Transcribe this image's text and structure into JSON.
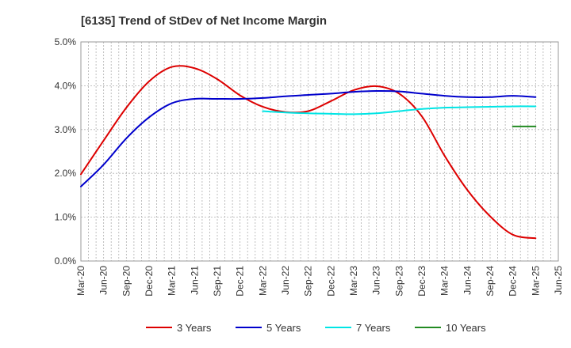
{
  "chart_data": {
    "type": "line",
    "title": "[6135]  Trend of StDev of Net Income Margin",
    "xlabel": "",
    "ylabel": "",
    "x_ticks": [
      "Mar-20",
      "Jun-20",
      "Sep-20",
      "Dec-20",
      "Mar-21",
      "Jun-21",
      "Sep-21",
      "Dec-21",
      "Mar-22",
      "Jun-22",
      "Sep-22",
      "Dec-22",
      "Mar-23",
      "Jun-23",
      "Sep-23",
      "Dec-23",
      "Mar-24",
      "Jun-24",
      "Sep-24",
      "Dec-24",
      "Mar-25",
      "Jun-25"
    ],
    "xlim": [
      "Mar-20",
      "Jun-25"
    ],
    "y_ticks": [
      "0.0%",
      "1.0%",
      "2.0%",
      "3.0%",
      "4.0%",
      "5.0%"
    ],
    "y_tick_values": [
      0,
      1,
      2,
      3,
      4,
      5
    ],
    "ylim": [
      0,
      5
    ],
    "y_unit": "%",
    "grid": true,
    "legend_position": "bottom",
    "series": [
      {
        "name": "3 Years",
        "color": "#dd0000",
        "x": [
          "Mar-20",
          "Jun-20",
          "Sep-20",
          "Dec-20",
          "Mar-21",
          "Jun-21",
          "Sep-21",
          "Dec-21",
          "Mar-22",
          "Jun-22",
          "Sep-22",
          "Dec-22",
          "Mar-23",
          "Jun-23",
          "Sep-23",
          "Dec-23",
          "Mar-24",
          "Jun-24",
          "Sep-24",
          "Dec-24",
          "Mar-25"
        ],
        "values": [
          1.98,
          2.75,
          3.5,
          4.1,
          4.43,
          4.4,
          4.15,
          3.78,
          3.52,
          3.4,
          3.42,
          3.65,
          3.9,
          3.99,
          3.82,
          3.3,
          2.4,
          1.62,
          1.02,
          0.6,
          0.52
        ]
      },
      {
        "name": "5 Years",
        "color": "#0000cc",
        "x": [
          "Mar-20",
          "Jun-20",
          "Sep-20",
          "Dec-20",
          "Mar-21",
          "Jun-21",
          "Sep-21",
          "Dec-21",
          "Mar-22",
          "Jun-22",
          "Sep-22",
          "Dec-22",
          "Mar-23",
          "Jun-23",
          "Sep-23",
          "Dec-23",
          "Mar-24",
          "Jun-24",
          "Sep-24",
          "Dec-24",
          "Mar-25"
        ],
        "values": [
          1.7,
          2.2,
          2.8,
          3.28,
          3.6,
          3.7,
          3.7,
          3.7,
          3.72,
          3.76,
          3.79,
          3.82,
          3.86,
          3.88,
          3.87,
          3.82,
          3.77,
          3.74,
          3.74,
          3.77,
          3.74
        ]
      },
      {
        "name": "7 Years",
        "color": "#00e5e5",
        "x": [
          "Mar-22",
          "Jun-22",
          "Sep-22",
          "Dec-22",
          "Mar-23",
          "Jun-23",
          "Sep-23",
          "Dec-23",
          "Mar-24",
          "Jun-24",
          "Sep-24",
          "Dec-24",
          "Mar-25"
        ],
        "values": [
          3.42,
          3.39,
          3.37,
          3.36,
          3.35,
          3.37,
          3.42,
          3.47,
          3.5,
          3.51,
          3.52,
          3.53,
          3.53
        ]
      },
      {
        "name": "10 Years",
        "color": "#228b22",
        "x": [
          "Dec-24",
          "Mar-25"
        ],
        "values": [
          3.07,
          3.07
        ]
      }
    ]
  }
}
